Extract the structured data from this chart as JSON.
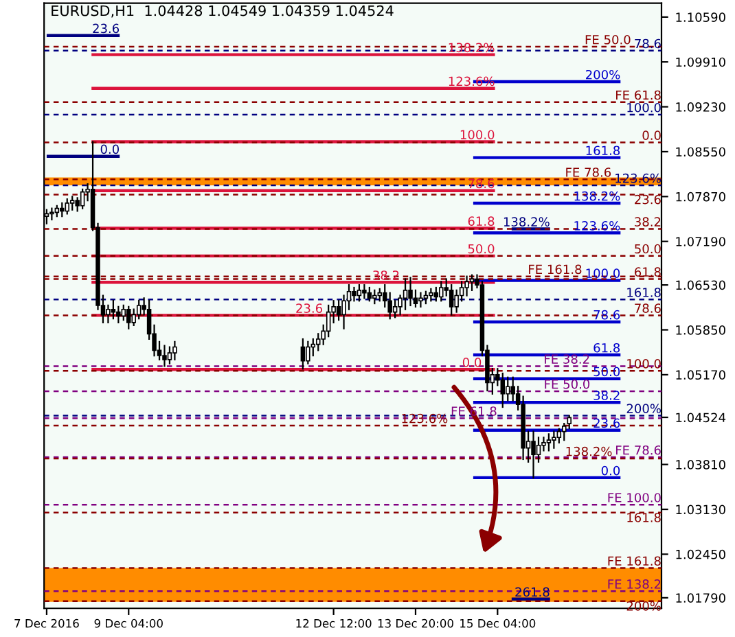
{
  "chart_data": {
    "type": "candlestick",
    "title": "EURUSD,H1  1.04428 1.04549 1.04359 1.04524",
    "color": "#000000",
    "x": [
      "2016-12-07T20:00",
      "2016-12-07T22:00",
      "2016-12-08T00:00",
      "2016-12-08T02:00",
      "2016-12-08T04:00",
      "2016-12-08T06:00",
      "2016-12-08T08:00",
      "2016-12-08T10:00",
      "2016-12-08T12:00",
      "2016-12-08T14:00",
      "2016-12-08T16:00",
      "2016-12-08T18:00",
      "2016-12-08T20:00",
      "2016-12-08T22:00",
      "2016-12-09T00:00",
      "2016-12-09T02:00",
      "2016-12-09T04:00",
      "2016-12-09T06:00",
      "2016-12-09T08:00",
      "2016-12-09T10:00",
      "2016-12-09T12:00",
      "2016-12-09T14:00",
      "2016-12-09T16:00",
      "2016-12-09T18:00",
      "2016-12-09T20:00",
      "2016-12-09T22:00",
      "2016-12-12T00:00",
      "2016-12-12T02:00",
      "2016-12-12T04:00",
      "2016-12-12T06:00",
      "2016-12-12T08:00",
      "2016-12-12T10:00",
      "2016-12-12T12:00",
      "2016-12-12T14:00",
      "2016-12-12T16:00",
      "2016-12-12T18:00",
      "2016-12-12T20:00",
      "2016-12-12T22:00",
      "2016-12-13T00:00",
      "2016-12-13T02:00",
      "2016-12-13T04:00",
      "2016-12-13T06:00",
      "2016-12-13T08:00",
      "2016-12-13T10:00",
      "2016-12-13T12:00",
      "2016-12-13T14:00",
      "2016-12-13T16:00",
      "2016-12-13T18:00",
      "2016-12-13T20:00",
      "2016-12-13T22:00",
      "2016-12-14T00:00",
      "2016-12-14T02:00",
      "2016-12-14T04:00",
      "2016-12-14T06:00",
      "2016-12-14T08:00",
      "2016-12-14T10:00",
      "2016-12-14T12:00",
      "2016-12-14T14:00",
      "2016-12-14T16:00",
      "2016-12-14T18:00",
      "2016-12-14T20:00",
      "2016-12-14T22:00",
      "2016-12-15T00:00",
      "2016-12-15T02:00",
      "2016-12-15T04:00",
      "2016-12-15T06:00",
      "2016-12-15T08:00",
      "2016-12-15T10:00",
      "2016-12-15T12:00",
      "2016-12-15T14:00",
      "2016-12-15T16:00",
      "2016-12-15T18:00",
      "2016-12-15T20:00",
      "2016-12-15T22:00",
      "2016-12-16T00:00",
      "2016-12-16T02:00",
      "2016-12-16T04:00",
      "2016-12-16T06:00",
      "2016-12-16T08:00"
    ],
    "ohlc": [
      [
        1.0757,
        1.0767,
        1.0746,
        1.0761
      ],
      [
        1.0761,
        1.0769,
        1.0752,
        1.0763
      ],
      [
        1.0763,
        1.0773,
        1.0757,
        1.0769
      ],
      [
        1.0769,
        1.0777,
        1.0757,
        1.0765
      ],
      [
        1.0765,
        1.0783,
        1.0761,
        1.0777
      ],
      [
        1.0777,
        1.0787,
        1.0767,
        1.0781
      ],
      [
        1.0781,
        1.0785,
        1.0765,
        1.0773
      ],
      [
        1.0773,
        1.0798,
        1.0769,
        1.0794
      ],
      [
        1.0794,
        1.0806,
        1.0781,
        1.0798
      ],
      [
        1.0798,
        1.087,
        1.0736,
        1.074
      ],
      [
        1.074,
        1.0746,
        1.0616,
        1.0622
      ],
      [
        1.0622,
        1.0637,
        1.0596,
        1.0608
      ],
      [
        1.0608,
        1.0622,
        1.0596,
        1.0616
      ],
      [
        1.0616,
        1.0629,
        1.0602,
        1.0612
      ],
      [
        1.0612,
        1.062,
        1.0596,
        1.0606
      ],
      [
        1.0606,
        1.0622,
        1.06,
        1.0616
      ],
      [
        1.0616,
        1.062,
        1.0587,
        1.0596
      ],
      [
        1.0596,
        1.0616,
        1.0592,
        1.0608
      ],
      [
        1.0608,
        1.0629,
        1.0602,
        1.0622
      ],
      [
        1.0622,
        1.0633,
        1.0608,
        1.0616
      ],
      [
        1.0616,
        1.0629,
        1.0571,
        1.0579
      ],
      [
        1.0579,
        1.0592,
        1.0546,
        1.0554
      ],
      [
        1.0554,
        1.0567,
        1.054,
        1.0546
      ],
      [
        1.0546,
        1.0561,
        1.053,
        1.054
      ],
      [
        1.054,
        1.0559,
        1.0534,
        1.055
      ],
      [
        1.055,
        1.0567,
        1.054,
        1.0559
      ],
      [
        1.0559,
        1.0571,
        1.0526,
        1.0538
      ],
      [
        1.0538,
        1.0567,
        1.0534,
        1.0559
      ],
      [
        1.0559,
        1.0571,
        1.0546,
        1.0563
      ],
      [
        1.0563,
        1.0579,
        1.0554,
        1.0571
      ],
      [
        1.0571,
        1.0592,
        1.0563,
        1.0583
      ],
      [
        1.0583,
        1.0622,
        1.0575,
        1.0612
      ],
      [
        1.0612,
        1.0629,
        1.0596,
        1.062
      ],
      [
        1.062,
        1.0629,
        1.06,
        1.0608
      ],
      [
        1.0608,
        1.0637,
        1.0587,
        1.0629
      ],
      [
        1.0629,
        1.0653,
        1.0616,
        1.0643
      ],
      [
        1.0643,
        1.0649,
        1.0629,
        1.0637
      ],
      [
        1.0637,
        1.0653,
        1.0629,
        1.0645
      ],
      [
        1.0645,
        1.0653,
        1.0633,
        1.0641
      ],
      [
        1.0641,
        1.0649,
        1.0629,
        1.0633
      ],
      [
        1.0633,
        1.0645,
        1.0625,
        1.0637
      ],
      [
        1.0637,
        1.0647,
        1.0629,
        1.0641
      ],
      [
        1.0641,
        1.0653,
        1.062,
        1.0629
      ],
      [
        1.0629,
        1.0641,
        1.0602,
        1.0612
      ],
      [
        1.0612,
        1.0629,
        1.0604,
        1.062
      ],
      [
        1.062,
        1.0637,
        1.0608,
        1.0633
      ],
      [
        1.0633,
        1.0662,
        1.0616,
        1.0645
      ],
      [
        1.0645,
        1.0664,
        1.0622,
        1.0633
      ],
      [
        1.0633,
        1.0645,
        1.062,
        1.0625
      ],
      [
        1.0629,
        1.0641,
        1.062,
        1.0633
      ],
      [
        1.0633,
        1.0643,
        1.0625,
        1.0637
      ],
      [
        1.0637,
        1.0647,
        1.0629,
        1.0641
      ],
      [
        1.0641,
        1.0649,
        1.0629,
        1.0635
      ],
      [
        1.0635,
        1.0658,
        1.0629,
        1.0649
      ],
      [
        1.0649,
        1.0662,
        1.0637,
        1.0645
      ],
      [
        1.0645,
        1.0653,
        1.0608,
        1.062
      ],
      [
        1.062,
        1.0645,
        1.0612,
        1.0637
      ],
      [
        1.0637,
        1.0658,
        1.0629,
        1.0649
      ],
      [
        1.0649,
        1.0666,
        1.0637,
        1.0658
      ],
      [
        1.0658,
        1.0668,
        1.0645,
        1.0662
      ],
      [
        1.0662,
        1.0668,
        1.0649,
        1.0653
      ],
      [
        1.0653,
        1.0658,
        1.0546,
        1.0554
      ],
      [
        1.0554,
        1.0561,
        1.0493,
        1.0505
      ],
      [
        1.0505,
        1.0526,
        1.0488,
        1.0517
      ],
      [
        1.0517,
        1.0526,
        1.0501,
        1.0509
      ],
      [
        1.0509,
        1.0519,
        1.0468,
        1.0488
      ],
      [
        1.0488,
        1.0513,
        1.0478,
        1.0499
      ],
      [
        1.0499,
        1.0513,
        1.0478,
        1.0488
      ],
      [
        1.0488,
        1.0499,
        1.0464,
        1.0472
      ],
      [
        1.0472,
        1.0484,
        1.0389,
        1.0406
      ],
      [
        1.0406,
        1.0431,
        1.0385,
        1.0416
      ],
      [
        1.0416,
        1.0431,
        1.0361,
        1.0396
      ],
      [
        1.0396,
        1.0422,
        1.0385,
        1.041
      ],
      [
        1.041,
        1.0422,
        1.0402,
        1.0414
      ],
      [
        1.0414,
        1.0427,
        1.0402,
        1.0418
      ],
      [
        1.0418,
        1.0431,
        1.0406,
        1.0422
      ],
      [
        1.0422,
        1.0435,
        1.0414,
        1.0431
      ],
      [
        1.0431,
        1.0443,
        1.0418,
        1.0439
      ],
      [
        1.0443,
        1.0455,
        1.0436,
        1.0452
      ]
    ],
    "xlim": [
      "2016-12-07T19:00",
      "2016-12-17T20:00"
    ],
    "ylim": [
      1.0163,
      1.108
    ],
    "xticks": [
      {
        "value": "2016-12-07T20:00",
        "label": "7 Dec 2016"
      },
      {
        "value": "2016-12-09T04:00",
        "label": "9 Dec 04:00"
      },
      {
        "value": "2016-12-12T12:00",
        "label": "12 Dec 12:00"
      },
      {
        "value": "2016-12-13T20:00",
        "label": "13 Dec 20:00"
      },
      {
        "value": "2016-12-15T04:00",
        "label": "15 Dec 04:00"
      }
    ],
    "yticks": [
      {
        "value": 1.1059,
        "label": "1.10590"
      },
      {
        "value": 1.0991,
        "label": "1.09910"
      },
      {
        "value": 1.0923,
        "label": "1.09230"
      },
      {
        "value": 1.0855,
        "label": "1.08550"
      },
      {
        "value": 1.0787,
        "label": "1.07870"
      },
      {
        "value": 1.0719,
        "label": "1.07190"
      },
      {
        "value": 1.0653,
        "label": "1.06530"
      },
      {
        "value": 1.0585,
        "label": "1.05850"
      },
      {
        "value": 1.0517,
        "label": "1.05170"
      },
      {
        "value": 1.04524,
        "label": "1.04524"
      },
      {
        "value": 1.0381,
        "label": "1.03810"
      },
      {
        "value": 1.0313,
        "label": "1.03130"
      },
      {
        "value": 1.0245,
        "label": "1.02450"
      },
      {
        "value": 1.0179,
        "label": "1.01790"
      }
    ],
    "series": [
      {
        "type": "line",
        "name": "23.6",
        "color": "#000080",
        "x": [
          "2016-12-07T20:00",
          "2016-12-09T00:30"
        ],
        "values": [
          1.1031,
          1.1031
        ]
      },
      {
        "type": "line",
        "name": "0.0",
        "color": "#000080",
        "x": [
          "2016-12-07T20:00",
          "2016-12-09T00:30"
        ],
        "values": [
          1.0848,
          1.0848
        ]
      },
      {
        "type": "line",
        "name": "138.2%",
        "color": "#dc143c",
        "x": [
          "2016-12-08T13:30",
          "2016-12-15T03:00"
        ],
        "values": [
          1.1002,
          1.1002
        ]
      },
      {
        "type": "line",
        "name": "123.6%",
        "color": "#dc143c",
        "x": [
          "2016-12-08T13:30",
          "2016-12-15T03:00"
        ],
        "values": [
          1.0951,
          1.0951
        ]
      },
      {
        "type": "line",
        "name": "100.0",
        "color": "#dc143c",
        "x": [
          "2016-12-08T13:30",
          "2016-12-15T03:00"
        ],
        "values": [
          1.087,
          1.087
        ]
      },
      {
        "type": "line",
        "name": "78.6",
        "color": "#dc143c",
        "x": [
          "2016-12-08T13:30",
          "2016-12-15T03:00"
        ],
        "values": [
          1.0796,
          1.0796
        ]
      },
      {
        "type": "line",
        "name": "61.8",
        "color": "#dc143c",
        "x": [
          "2016-12-08T13:30",
          "2016-12-15T03:00"
        ],
        "values": [
          1.0739,
          1.0739
        ]
      },
      {
        "type": "line",
        "name": "50.0",
        "color": "#dc143c",
        "x": [
          "2016-12-08T13:30",
          "2016-12-15T03:00"
        ],
        "values": [
          1.0697,
          1.0697
        ]
      },
      {
        "type": "line",
        "name": "38.2",
        "color": "#dc143c",
        "x": [
          "2016-12-08T13:30",
          "2016-12-15T03:00"
        ],
        "values": [
          1.0657,
          1.0657
        ]
      },
      {
        "type": "line",
        "name": "23.6",
        "color": "#dc143c",
        "x": [
          "2016-12-08T13:30",
          "2016-12-15T03:00"
        ],
        "values": [
          1.0607,
          1.0607
        ]
      },
      {
        "type": "line",
        "name": "0.0",
        "color": "#dc143c",
        "x": [
          "2016-12-08T13:30",
          "2016-12-15T03:00"
        ],
        "values": [
          1.0525,
          1.0525
        ]
      },
      {
        "type": "line",
        "name": "200%",
        "color": "#0000cd",
        "x": [
          "2016-12-14T18:30",
          "2016-12-17T04:00"
        ],
        "values": [
          1.0961,
          1.0961
        ]
      },
      {
        "type": "line",
        "name": "161.8",
        "color": "#0000cd",
        "x": [
          "2016-12-14T18:30",
          "2016-12-17T04:00"
        ],
        "values": [
          1.0846,
          1.0846
        ]
      },
      {
        "type": "line",
        "name": "138.2%",
        "color": "#0000cd",
        "x": [
          "2016-12-14T18:30",
          "2016-12-17T04:00"
        ],
        "values": [
          1.0777,
          1.0777
        ]
      },
      {
        "type": "line",
        "name": "123.6%",
        "color": "#0000cd",
        "x": [
          "2016-12-14T18:30",
          "2016-12-17T04:00"
        ],
        "values": [
          1.0732,
          1.0732
        ]
      },
      {
        "type": "line",
        "name": "100.0",
        "color": "#0000cd",
        "x": [
          "2016-12-14T18:30",
          "2016-12-17T04:00"
        ],
        "values": [
          1.066,
          1.066
        ]
      },
      {
        "type": "line",
        "name": "78.6",
        "color": "#0000cd",
        "x": [
          "2016-12-14T18:30",
          "2016-12-17T04:00"
        ],
        "values": [
          1.0597,
          1.0597
        ]
      },
      {
        "type": "line",
        "name": "61.8",
        "color": "#0000cd",
        "x": [
          "2016-12-14T18:30",
          "2016-12-17T04:00"
        ],
        "values": [
          1.0547,
          1.0547
        ]
      },
      {
        "type": "line",
        "name": "50.0",
        "color": "#0000cd",
        "x": [
          "2016-12-14T18:30",
          "2016-12-17T04:00"
        ],
        "values": [
          1.0511,
          1.0511
        ]
      },
      {
        "type": "line",
        "name": "38.2",
        "color": "#0000cd",
        "x": [
          "2016-12-14T18:30",
          "2016-12-17T04:00"
        ],
        "values": [
          1.0475,
          1.0475
        ]
      },
      {
        "type": "line",
        "name": "23.6",
        "color": "#0000cd",
        "x": [
          "2016-12-14T18:30",
          "2016-12-17T04:00"
        ],
        "values": [
          1.0433,
          1.0433
        ]
      },
      {
        "type": "line",
        "name": "0.0",
        "color": "#0000cd",
        "x": [
          "2016-12-14T18:30",
          "2016-12-17T04:00"
        ],
        "values": [
          1.0361,
          1.0361
        ]
      },
      {
        "type": "line",
        "name": "78.6",
        "color": "#000080",
        "line_style": "dashed",
        "x": [
          "2016-12-07T19:00",
          "2016-12-17T20:00"
        ],
        "values": [
          1.1008,
          1.1008
        ]
      },
      {
        "type": "line",
        "name": "100.0",
        "color": "#000080",
        "line_style": "dashed",
        "x": [
          "2016-12-07T19:00",
          "2016-12-17T20:00"
        ],
        "values": [
          1.0911,
          1.0911
        ]
      },
      {
        "type": "line",
        "name": "123.6%",
        "color": "#000080",
        "line_style": "dashed",
        "x": [
          "2016-12-07T19:00",
          "2016-12-17T20:00"
        ],
        "values": [
          1.0804,
          1.0804
        ]
      },
      {
        "type": "line",
        "name": "138.2%",
        "color": "#000080",
        "x": [
          "2016-12-15T09:30",
          "2016-12-16T00:30"
        ],
        "values": [
          1.0738,
          1.0738
        ]
      },
      {
        "type": "line",
        "name": "161.8",
        "color": "#000080",
        "line_style": "dashed",
        "x": [
          "2016-12-07T19:00",
          "2016-12-17T20:00"
        ],
        "values": [
          1.0631,
          1.0631
        ]
      },
      {
        "type": "line",
        "name": "200%",
        "color": "#000080",
        "line_style": "dashed",
        "x": [
          "2016-12-07T19:00",
          "2016-12-17T20:00"
        ],
        "values": [
          1.0455,
          1.0455
        ]
      },
      {
        "type": "line",
        "name": "261.8",
        "color": "#000080",
        "x": [
          "2016-12-15T09:30",
          "2016-12-16T00:30"
        ],
        "values": [
          1.0177,
          1.0177
        ]
      },
      {
        "type": "line",
        "name": "FE 50.0",
        "color": "#8b0000",
        "line_style": "dashed",
        "x": [
          "2016-12-07T19:00",
          "2016-12-17T20:00"
        ],
        "values": [
          1.1014,
          1.1014
        ]
      },
      {
        "type": "line",
        "name": "FE 61.8",
        "color": "#8b0000",
        "line_style": "dashed",
        "x": [
          "2016-12-07T19:00",
          "2016-12-17T20:00"
        ],
        "values": [
          1.093,
          1.093
        ]
      },
      {
        "type": "line",
        "name": "0.0",
        "color": "#8b0000",
        "line_style": "dashed",
        "x": [
          "2016-12-07T19:00",
          "2016-12-17T20:00"
        ],
        "values": [
          1.0869,
          1.0869
        ]
      },
      {
        "type": "line",
        "name": "FE 78.6",
        "color": "#8b0000",
        "line_style": "dashed",
        "x": [
          "2016-12-07T19:00",
          "2016-12-17T20:00"
        ],
        "values": [
          1.0813,
          1.0813
        ]
      },
      {
        "type": "line",
        "name": "23.6",
        "color": "#8b0000",
        "line_style": "dashed",
        "x": [
          "2016-12-07T19:00",
          "2016-12-17T20:00"
        ],
        "values": [
          1.079,
          1.079
        ]
      },
      {
        "type": "line",
        "name": "38.2",
        "color": "#8b0000",
        "line_style": "dashed",
        "x": [
          "2016-12-07T19:00",
          "2016-12-17T20:00"
        ],
        "values": [
          1.0738,
          1.0738
        ]
      },
      {
        "type": "line",
        "name": "50.0",
        "color": "#8b0000",
        "line_style": "dashed",
        "x": [
          "2016-12-07T19:00",
          "2016-12-17T20:00"
        ],
        "values": [
          1.0697,
          1.0697
        ]
      },
      {
        "type": "line",
        "name": "FE 161.8",
        "color": "#8b0000",
        "line_style": "dashed",
        "x": [
          "2016-12-07T19:00",
          "2016-12-17T20:00"
        ],
        "values": [
          1.0666,
          1.0666
        ]
      },
      {
        "type": "line",
        "name": "61.8",
        "color": "#8b0000",
        "line_style": "dashed",
        "x": [
          "2016-12-07T19:00",
          "2016-12-17T20:00"
        ],
        "values": [
          1.0662,
          1.0662
        ]
      },
      {
        "type": "line",
        "name": "78.6",
        "color": "#8b0000",
        "line_style": "dashed",
        "x": [
          "2016-12-07T19:00",
          "2016-12-17T20:00"
        ],
        "values": [
          1.0607,
          1.0607
        ]
      },
      {
        "type": "line",
        "name": "FE 38.2",
        "color": "#800080",
        "line_style": "dashed",
        "x": [
          "2016-12-07T19:00",
          "2016-12-17T20:00"
        ],
        "values": [
          1.053,
          1.053
        ]
      },
      {
        "type": "line",
        "name": "100.0",
        "color": "#8b0000",
        "line_style": "dashed",
        "x": [
          "2016-12-07T19:00",
          "2016-12-17T20:00"
        ],
        "values": [
          1.0523,
          1.0523
        ]
      },
      {
        "type": "line",
        "name": "FE 50.0",
        "color": "#800080",
        "line_style": "dashed",
        "x": [
          "2016-12-07T19:00",
          "2016-12-17T20:00"
        ],
        "values": [
          1.0492,
          1.0492
        ]
      },
      {
        "type": "line",
        "name": "FE 61.8",
        "color": "#800080",
        "line_style": "dashed",
        "x": [
          "2016-12-07T19:00",
          "2016-12-17T20:00"
        ],
        "values": [
          1.0451,
          1.0451
        ]
      },
      {
        "type": "line",
        "name": "123.6%",
        "color": "#8b0000",
        "line_style": "dashed",
        "x": [
          "2016-12-07T19:00",
          "2016-12-17T20:00"
        ],
        "values": [
          1.044,
          1.044
        ]
      },
      {
        "type": "line",
        "name": "FE 78.6",
        "color": "#800080",
        "line_style": "dashed",
        "x": [
          "2016-12-07T19:00",
          "2016-12-17T20:00"
        ],
        "values": [
          1.0392,
          1.0392
        ]
      },
      {
        "type": "line",
        "name": "138.2%",
        "color": "#8b0000",
        "line_style": "dashed",
        "x": [
          "2016-12-07T19:00",
          "2016-12-17T20:00"
        ],
        "values": [
          1.039,
          1.039
        ]
      },
      {
        "type": "line",
        "name": "FE 100.0",
        "color": "#800080",
        "line_style": "dashed",
        "x": [
          "2016-12-07T19:00",
          "2016-12-17T20:00"
        ],
        "values": [
          1.032,
          1.032
        ]
      },
      {
        "type": "line",
        "name": "161.8",
        "color": "#8b0000",
        "line_style": "dashed",
        "x": [
          "2016-12-07T19:00",
          "2016-12-17T20:00"
        ],
        "values": [
          1.0308,
          1.0308
        ]
      },
      {
        "type": "line",
        "name": "FE 161.8",
        "color": "#8b0000",
        "line_style": "dashed",
        "x": [
          "2016-12-07T19:00",
          "2016-12-17T20:00"
        ],
        "values": [
          1.0224,
          1.0224
        ]
      },
      {
        "type": "line",
        "name": "FE 138.2",
        "color": "#800080",
        "line_style": "dashed",
        "x": [
          "2016-12-07T19:00",
          "2016-12-17T20:00"
        ],
        "values": [
          1.0189,
          1.0189
        ]
      },
      {
        "type": "line",
        "name": "200%",
        "color": "#8b0000",
        "line_style": "dashed",
        "x": [
          "2016-12-07T19:00",
          "2016-12-17T20:00"
        ],
        "values": [
          1.0174,
          1.0174
        ]
      }
    ],
    "bands": [
      {
        "axis": "y",
        "from": 1.0804,
        "to": 1.0816,
        "color": "#ff8c00"
      },
      {
        "axis": "y",
        "from": 1.0173,
        "to": 1.0224,
        "color": "#ff8c00"
      }
    ]
  }
}
